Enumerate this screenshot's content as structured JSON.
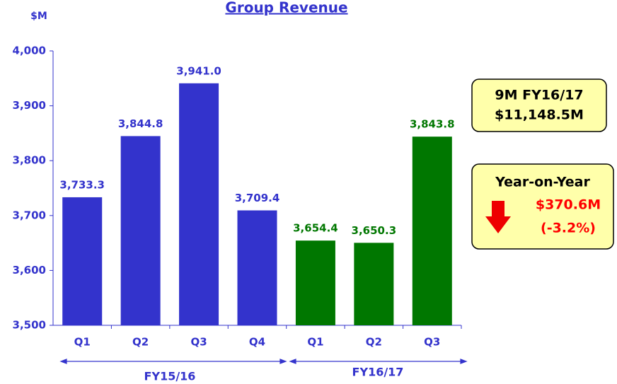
{
  "chart_data": {
    "type": "bar",
    "title": "Group Revenue",
    "y_label": "$M",
    "categories": [
      "Q1",
      "Q2",
      "Q3",
      "Q4",
      "Q1",
      "Q2",
      "Q3"
    ],
    "series": [
      {
        "name": "FY15/16",
        "color": "#3333cc",
        "values": [
          3733.3,
          3844.8,
          3941.0,
          3709.4,
          null,
          null,
          null
        ],
        "value_labels": [
          "3,733.3",
          "3,844.8",
          "3,941.0",
          "3,709.4",
          null,
          null,
          null
        ]
      },
      {
        "name": "FY16/17",
        "color": "#007700",
        "values": [
          null,
          null,
          null,
          null,
          3654.4,
          3650.3,
          3843.8
        ],
        "value_labels": [
          null,
          null,
          null,
          null,
          "3,654.4",
          "3,650.3",
          "3,843.8"
        ]
      }
    ],
    "ylim": [
      3500,
      4000
    ],
    "yticks": [
      {
        "value": 3500,
        "label": "3,500"
      },
      {
        "value": 3600,
        "label": "3,600"
      },
      {
        "value": 3700,
        "label": "3,700"
      },
      {
        "value": 3800,
        "label": "3,800"
      },
      {
        "value": 3900,
        "label": "3,900"
      },
      {
        "value": 4000,
        "label": "4,000"
      }
    ],
    "summary_box": {
      "title": "9M FY16/17",
      "value": "$11,148.5M"
    },
    "yoy_box": {
      "title": "Year-on-Year",
      "change": "$370.6M",
      "percent": "(-3.2%)"
    }
  }
}
